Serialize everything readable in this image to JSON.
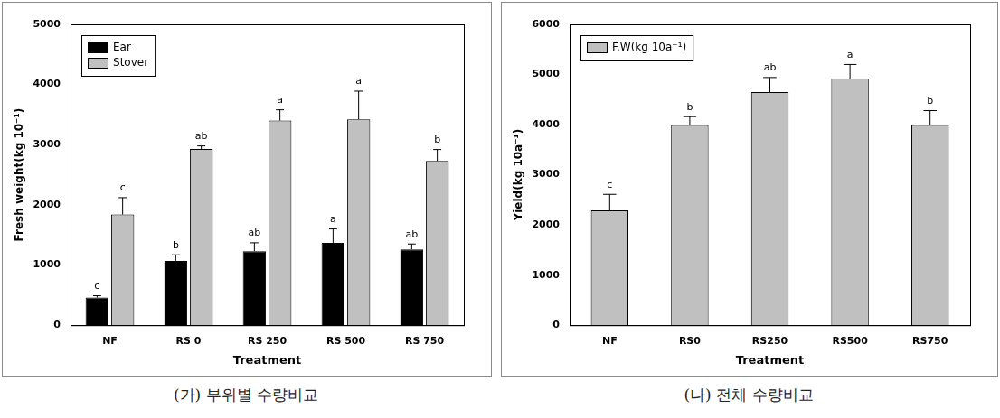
{
  "chart_data": [
    {
      "type": "bar",
      "title": "(가) 부위별 수량비교",
      "x_label": "Treatment",
      "y_label": "Fresh weight(kg 10⁻¹)",
      "categories": [
        "NF",
        "RS 0",
        "RS 250",
        "RS 500",
        "RS 750"
      ],
      "series": [
        {
          "name": "Ear",
          "color": "#000000",
          "values": [
            460,
            1070,
            1230,
            1370,
            1260
          ],
          "errors": [
            30,
            100,
            140,
            230,
            90
          ],
          "letters": [
            "c",
            "b",
            "ab",
            "a",
            "ab"
          ]
        },
        {
          "name": "Stover",
          "color": "#c0c0c0",
          "values": [
            1840,
            2930,
            3400,
            3420,
            2730
          ],
          "errors": [
            280,
            50,
            180,
            470,
            190
          ],
          "letters": [
            "c",
            "ab",
            "a",
            "a",
            "b"
          ]
        }
      ],
      "ylim": [
        0,
        5000
      ],
      "yticks": [
        0,
        1000,
        2000,
        3000,
        4000,
        5000
      ],
      "grid": false,
      "legend": "upper left"
    },
    {
      "type": "bar",
      "title": "(나) 전체 수량비교",
      "x_label": "Treatment",
      "y_label": "Yield(kg 10a⁻¹)",
      "categories": [
        "NF",
        "RS0",
        "RS250",
        "RS500",
        "RS750"
      ],
      "series": [
        {
          "name": "F.W(kg 10a⁻¹)",
          "color": "#c0c0c0",
          "values": [
            2290,
            3990,
            4650,
            4920,
            3990
          ],
          "errors": [
            320,
            170,
            290,
            280,
            290
          ],
          "letters": [
            "c",
            "b",
            "ab",
            "a",
            "b"
          ]
        }
      ],
      "ylim": [
        0,
        6000
      ],
      "yticks": [
        0,
        1000,
        2000,
        3000,
        4000,
        5000,
        6000
      ],
      "grid": false,
      "legend": "upper left"
    }
  ]
}
